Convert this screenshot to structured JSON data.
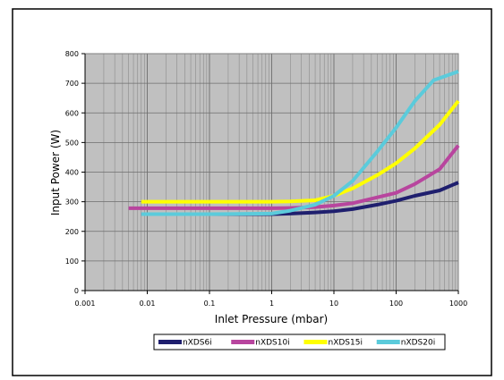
{
  "chart_data": {
    "type": "line",
    "title": "",
    "xlabel": "Inlet Pressure (mbar)",
    "ylabel": "Input Power (W)",
    "x_scale": "log",
    "xlim": [
      0.001,
      1000
    ],
    "ylim": [
      0,
      800
    ],
    "x_ticks": [
      {
        "value": 0.001,
        "label": "0.001"
      },
      {
        "value": 0.01,
        "label": "0.01"
      },
      {
        "value": 0.1,
        "label": "0.1"
      },
      {
        "value": 1,
        "label": "1"
      },
      {
        "value": 10,
        "label": "10"
      },
      {
        "value": 100,
        "label": "100"
      },
      {
        "value": 1000,
        "label": "1000"
      }
    ],
    "y_ticks": [
      {
        "value": 0,
        "label": "0"
      },
      {
        "value": 100,
        "label": "100"
      },
      {
        "value": 200,
        "label": "200"
      },
      {
        "value": 300,
        "label": "300"
      },
      {
        "value": 400,
        "label": "400"
      },
      {
        "value": 500,
        "label": "500"
      },
      {
        "value": 600,
        "label": "600"
      },
      {
        "value": 700,
        "label": "700"
      },
      {
        "value": 800,
        "label": "800"
      }
    ],
    "grid": true,
    "plot_background": "#c0c0c0",
    "legend_position": "bottom",
    "series": [
      {
        "name": "nXDS6i",
        "color": "#1f1f6e",
        "x": [
          0.008,
          0.1,
          1,
          2,
          5,
          10,
          20,
          50,
          100,
          200,
          500,
          1000
        ],
        "y": [
          258,
          258,
          258,
          260,
          264,
          268,
          275,
          290,
          303,
          320,
          338,
          365
        ]
      },
      {
        "name": "nXDS10i",
        "color": "#b8459e",
        "x": [
          0.005,
          0.1,
          1,
          2,
          5,
          10,
          20,
          50,
          100,
          200,
          500,
          1000
        ],
        "y": [
          278,
          278,
          278,
          279,
          282,
          287,
          295,
          315,
          330,
          360,
          410,
          490
        ]
      },
      {
        "name": "nXDS15i",
        "color": "#ffff00",
        "x": [
          0.008,
          0.1,
          1,
          2,
          5,
          10,
          20,
          50,
          100,
          200,
          500,
          1000
        ],
        "y": [
          300,
          300,
          300,
          301,
          305,
          320,
          345,
          390,
          430,
          480,
          560,
          640
        ]
      },
      {
        "name": "nXDS20i",
        "color": "#5bcbdb",
        "x": [
          0.008,
          0.1,
          1,
          2,
          5,
          10,
          20,
          50,
          100,
          200,
          400,
          1000
        ],
        "y": [
          258,
          258,
          260,
          270,
          290,
          320,
          370,
          470,
          550,
          640,
          710,
          740
        ]
      }
    ]
  }
}
